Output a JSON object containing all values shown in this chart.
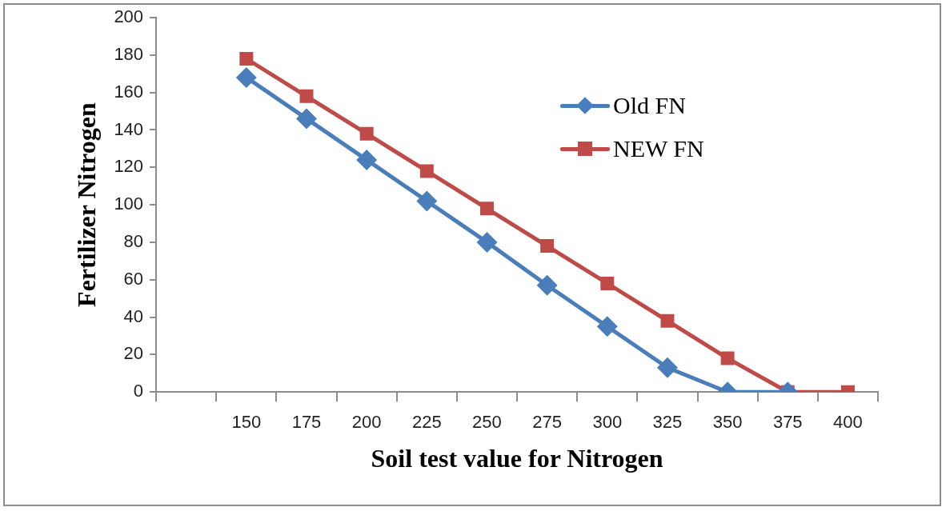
{
  "chart_data": {
    "type": "line",
    "xlabel": "Soil test value for Nitrogen",
    "ylabel": "Fertilizer Nitrogen",
    "categories": [
      null,
      "150",
      "175",
      "200",
      "225",
      "250",
      "275",
      "300",
      "325",
      "350",
      "375",
      "400"
    ],
    "series": [
      {
        "name": "Old FN",
        "color": "#4a7ebb",
        "marker": "diamond",
        "values": [
          null,
          168,
          146,
          124,
          102,
          80,
          57,
          35,
          13,
          0,
          0,
          null
        ]
      },
      {
        "name": "NEW FN",
        "color": "#be4b48",
        "marker": "square",
        "values": [
          null,
          178,
          158,
          138,
          118,
          98,
          78,
          58,
          38,
          18,
          0,
          0
        ]
      }
    ],
    "ylim": [
      0,
      200
    ],
    "yticks": [
      0,
      20,
      40,
      60,
      80,
      100,
      120,
      140,
      160,
      180,
      200
    ],
    "grid": false,
    "legend": "top right",
    "line_style": "solid"
  }
}
